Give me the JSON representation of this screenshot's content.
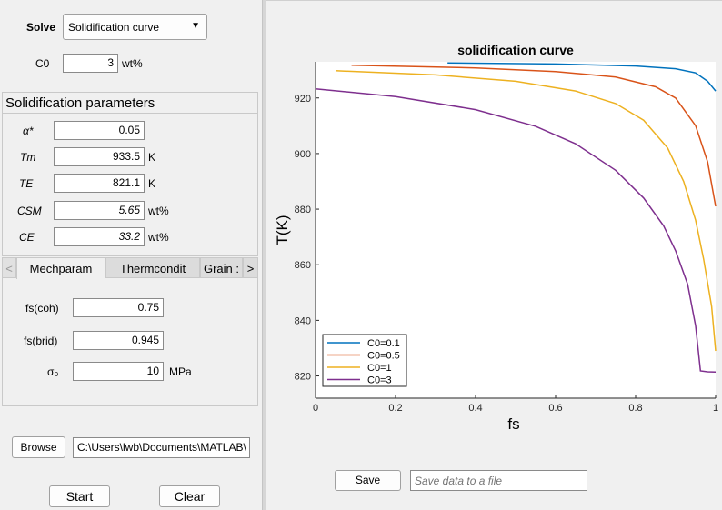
{
  "solve": {
    "label": "Solve",
    "selected": "Solidification curve"
  },
  "c0": {
    "label": "C0",
    "value": "3",
    "unit": "wt%"
  },
  "params": {
    "title": "Solidification parameters",
    "alpha": {
      "label": "α*",
      "value": "0.05"
    },
    "tm": {
      "label": "Tm",
      "value": "933.5",
      "unit": "K"
    },
    "te": {
      "label": "TE",
      "value": "821.1",
      "unit": "K"
    },
    "csm": {
      "label": "CSM",
      "value": "5.65",
      "unit": "wt%"
    },
    "ce": {
      "label": "CE",
      "value": "33.2",
      "unit": "wt%"
    }
  },
  "tabs": [
    "Mechparam",
    "Thermcondit",
    "Grain :"
  ],
  "mech": {
    "fscoh": {
      "label": "fs(coh)",
      "value": "0.75"
    },
    "fsbrid": {
      "label": "fs(brid)",
      "value": "0.945"
    },
    "sigma": {
      "label": "σ₀",
      "value": "10",
      "unit": "MPa"
    }
  },
  "browse": {
    "label": "Browse",
    "path": "C:\\Users\\lwb\\Documents\\MATLAB\\"
  },
  "buttons": {
    "start": "Start",
    "clear": "Clear"
  },
  "save": {
    "label": "Save",
    "placeholder": "Save data to a file"
  },
  "colors": {
    "c01": "#0072bd",
    "c05": "#d95319",
    "c1": "#edb120",
    "c3": "#7e2f8e"
  },
  "chart_data": {
    "type": "line",
    "title": "solidification curve",
    "xlabel": "fs",
    "ylabel": "T(K)",
    "xlim": [
      0,
      1
    ],
    "ylim": [
      812,
      933
    ],
    "xticks": [
      "0",
      "0.2",
      "0.4",
      "0.6",
      "0.8",
      "1"
    ],
    "yticks": [
      "820",
      "840",
      "860",
      "880",
      "900",
      "920"
    ],
    "legend_position": "bottom-left",
    "series": [
      {
        "name": "C0=0.1",
        "color": "#0072bd",
        "points": [
          [
            0.33,
            932.6
          ],
          [
            0.6,
            932.2
          ],
          [
            0.8,
            931.5
          ],
          [
            0.9,
            930.5
          ],
          [
            0.95,
            929
          ],
          [
            0.98,
            926
          ],
          [
            1.0,
            922.5
          ]
        ]
      },
      {
        "name": "C0=0.5",
        "color": "#d95319",
        "points": [
          [
            0.09,
            931.8
          ],
          [
            0.4,
            930.8
          ],
          [
            0.6,
            929.5
          ],
          [
            0.75,
            927.5
          ],
          [
            0.85,
            924
          ],
          [
            0.9,
            920
          ],
          [
            0.95,
            910
          ],
          [
            0.98,
            897
          ],
          [
            1.0,
            881
          ]
        ]
      },
      {
        "name": "C0=1",
        "color": "#edb120",
        "points": [
          [
            0.05,
            929.8
          ],
          [
            0.3,
            928.3
          ],
          [
            0.5,
            926
          ],
          [
            0.65,
            922.5
          ],
          [
            0.75,
            918
          ],
          [
            0.82,
            912
          ],
          [
            0.88,
            902
          ],
          [
            0.92,
            890
          ],
          [
            0.95,
            876
          ],
          [
            0.97,
            862
          ],
          [
            0.99,
            845
          ],
          [
            1.0,
            829
          ]
        ]
      },
      {
        "name": "C0=3",
        "color": "#7e2f8e",
        "points": [
          [
            0.0,
            923.3
          ],
          [
            0.2,
            920.5
          ],
          [
            0.4,
            915.8
          ],
          [
            0.55,
            909.8
          ],
          [
            0.65,
            903.5
          ],
          [
            0.75,
            894
          ],
          [
            0.82,
            884
          ],
          [
            0.87,
            874
          ],
          [
            0.9,
            865
          ],
          [
            0.93,
            853
          ],
          [
            0.95,
            838
          ],
          [
            0.962,
            821.8
          ],
          [
            0.98,
            821.5
          ],
          [
            1.0,
            821.4
          ]
        ]
      }
    ]
  }
}
